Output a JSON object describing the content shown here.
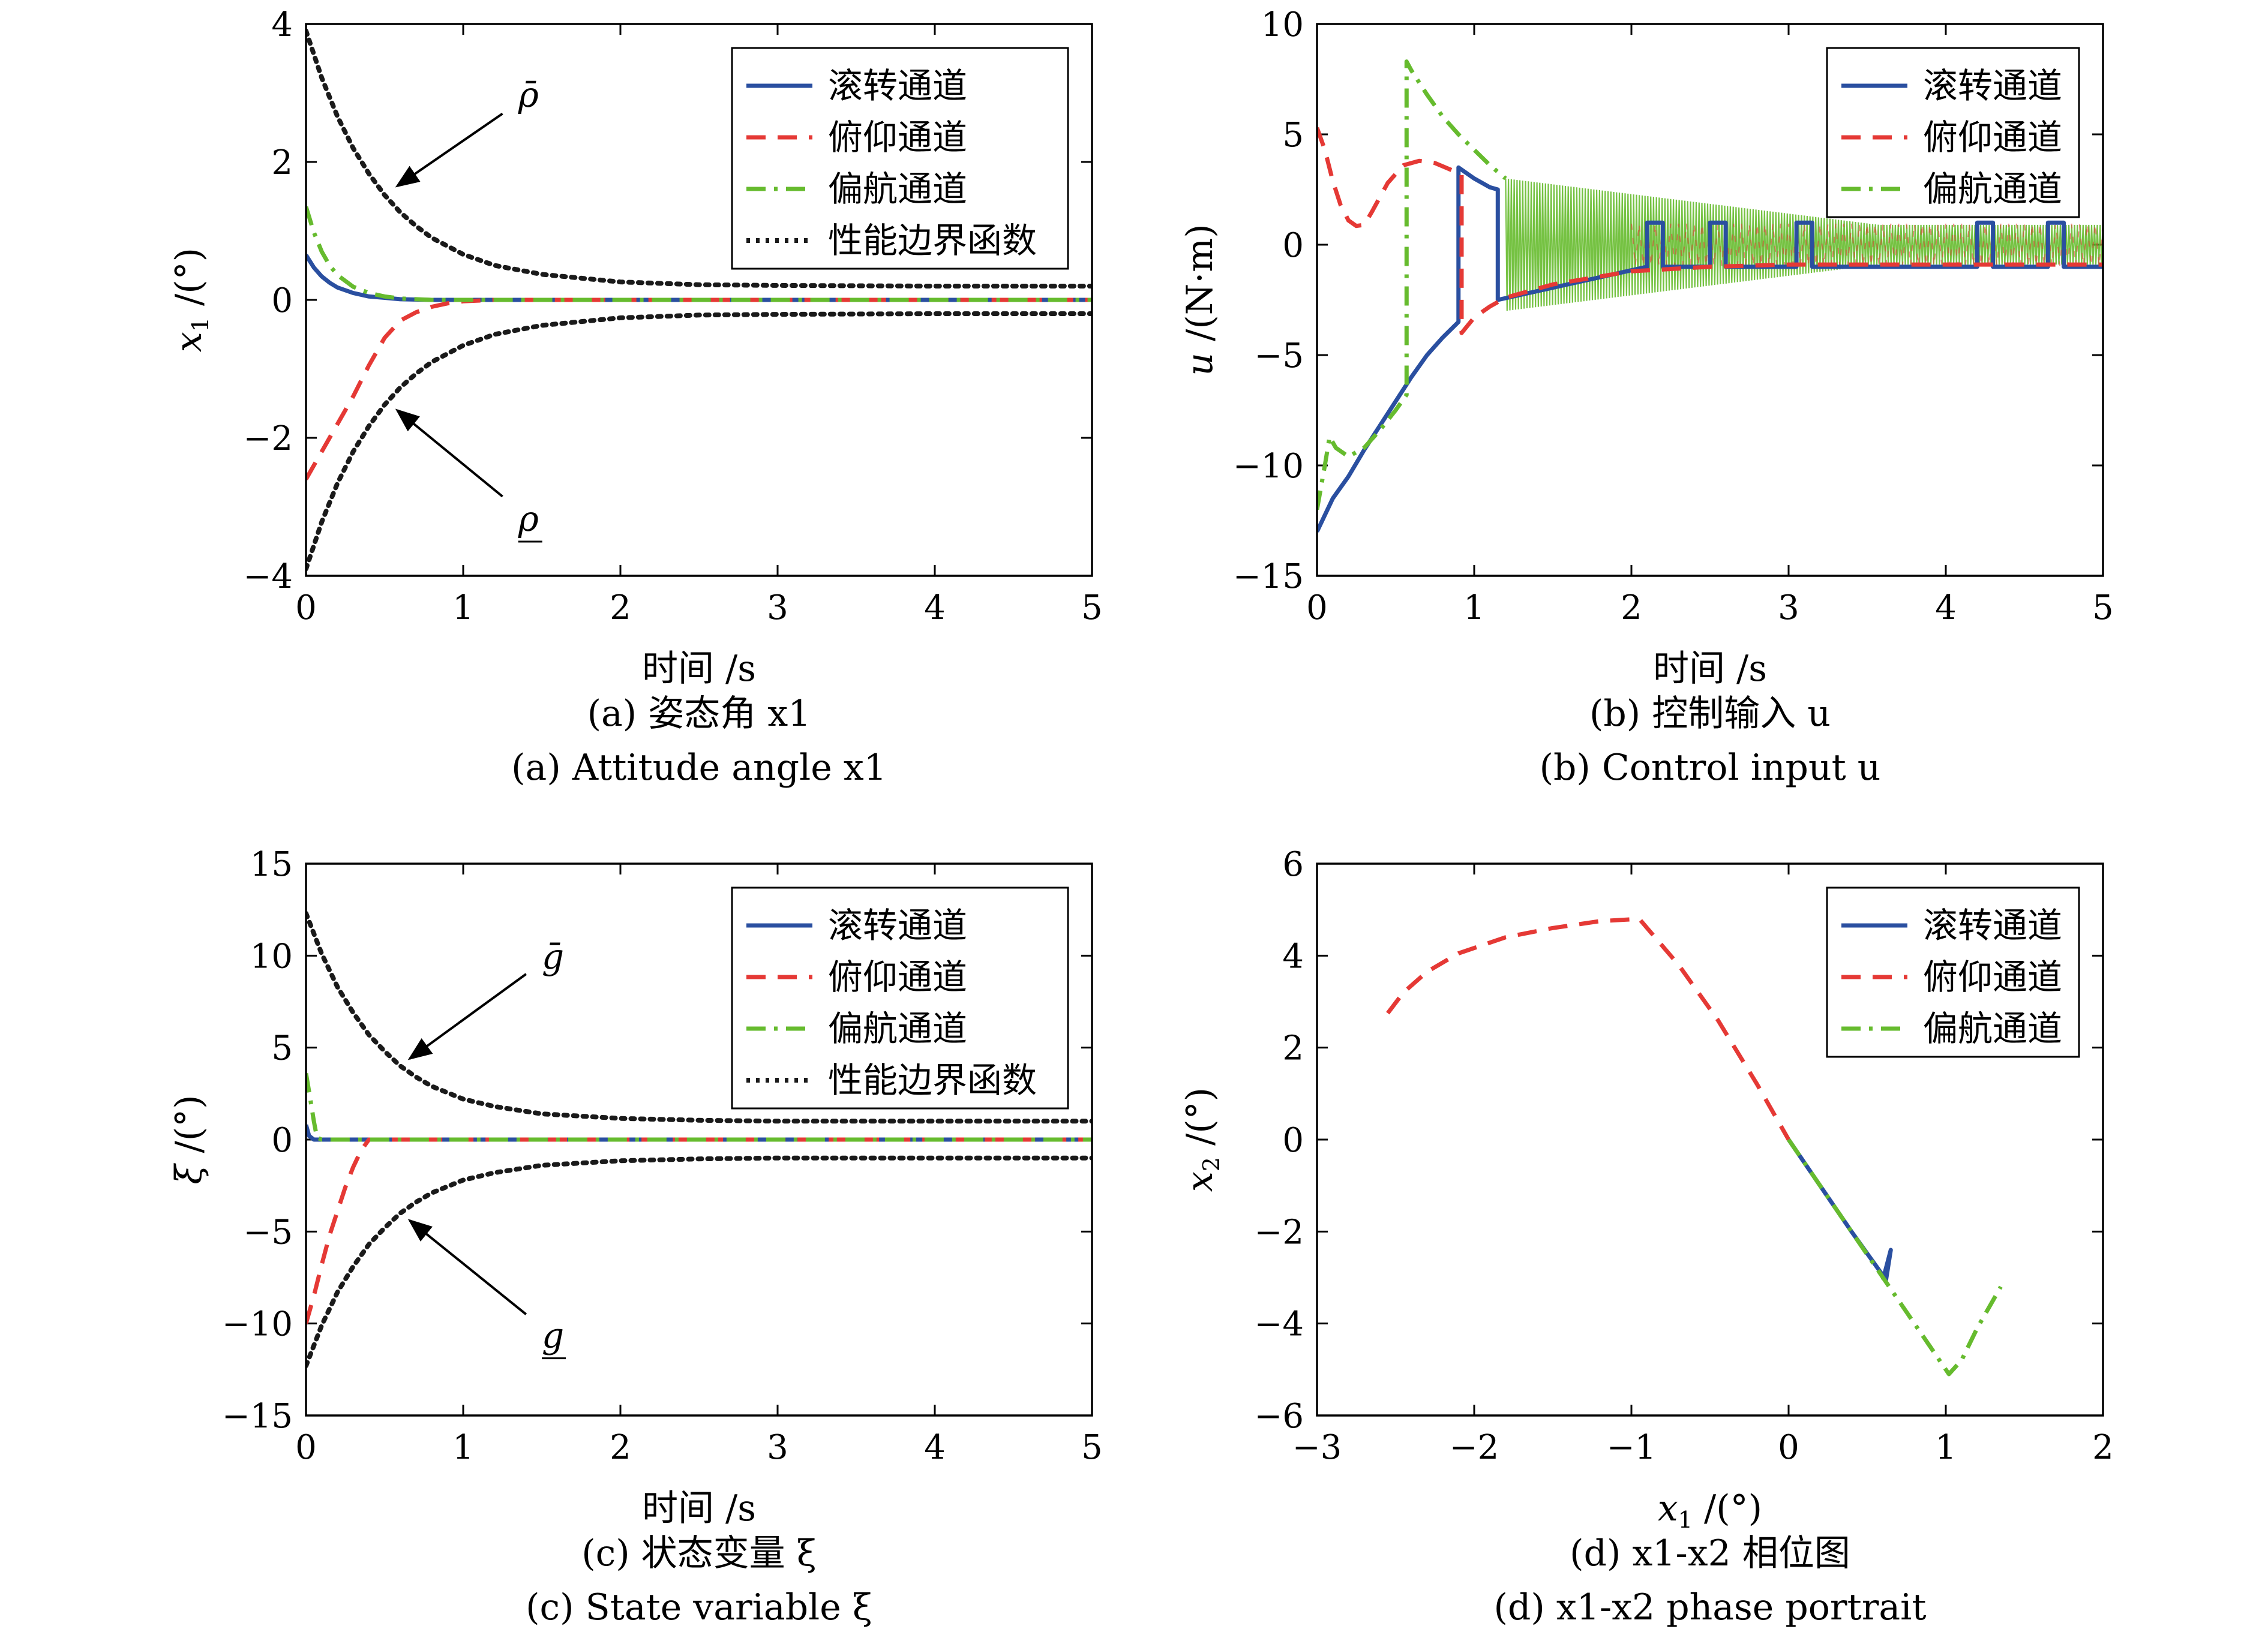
{
  "colors": {
    "roll": "#2a4fa0",
    "pitch": "#e53935",
    "yaw": "#66bb2e",
    "bound": "#1a1a1a"
  },
  "chart_data": [
    {
      "id": "a",
      "type": "line",
      "xlabel": "时间 /s",
      "ylabel": "x1 /(°)",
      "ylabel_var": "x",
      "ylabel_sub": "1",
      "ylabel_unit": " /(°)",
      "xlim": [
        0,
        5
      ],
      "ylim": [
        -4,
        4
      ],
      "xticks": [
        "0",
        "1",
        "2",
        "3",
        "4",
        "5"
      ],
      "yticks": [
        "−4",
        "−2",
        "0",
        "2",
        "4"
      ],
      "caption_cn": "(a) 姿态角 x1",
      "caption_en": "(a) Attitude angle x1",
      "legend_position": "top-right",
      "legend": [
        "滚转通道",
        "俯仰通道",
        "偏航通道",
        "性能边界函数"
      ],
      "annotations": [
        "ρ̄",
        "ρ"
      ],
      "series": [
        {
          "name": "滚转通道",
          "style": "roll",
          "x": [
            0,
            0.05,
            0.1,
            0.15,
            0.2,
            0.3,
            0.4,
            0.5,
            0.6,
            0.8,
            1,
            1.5,
            2,
            3,
            4,
            5
          ],
          "y": [
            0.65,
            0.47,
            0.34,
            0.25,
            0.18,
            0.1,
            0.05,
            0.03,
            0.01,
            0,
            0,
            0,
            0,
            0,
            0,
            0
          ]
        },
        {
          "name": "俯仰通道",
          "style": "pitch",
          "x": [
            0,
            0.1,
            0.2,
            0.3,
            0.4,
            0.5,
            0.6,
            0.7,
            0.8,
            0.9,
            1.0,
            1.2,
            1.5,
            2,
            3,
            4,
            5
          ],
          "y": [
            -2.6,
            -2.2,
            -1.8,
            -1.4,
            -0.95,
            -0.55,
            -0.3,
            -0.18,
            -0.1,
            -0.05,
            -0.02,
            0,
            0,
            0,
            0,
            0,
            0
          ]
        },
        {
          "name": "偏航通道",
          "style": "yaw",
          "x": [
            0,
            0.05,
            0.1,
            0.15,
            0.2,
            0.3,
            0.4,
            0.5,
            0.6,
            0.8,
            1,
            1.5,
            2,
            3,
            4,
            5
          ],
          "y": [
            1.35,
            0.98,
            0.7,
            0.5,
            0.36,
            0.19,
            0.1,
            0.05,
            0.02,
            0,
            0,
            0,
            0,
            0,
            0,
            0
          ]
        },
        {
          "name": "性能边界函数",
          "style": "bound",
          "x": [
            0,
            0.1,
            0.2,
            0.3,
            0.4,
            0.5,
            0.6,
            0.7,
            0.8,
            1,
            1.2,
            1.5,
            2,
            2.5,
            3,
            4,
            5
          ],
          "y": [
            3.9,
            3.22,
            2.66,
            2.2,
            1.83,
            1.52,
            1.27,
            1.07,
            0.9,
            0.66,
            0.5,
            0.37,
            0.26,
            0.22,
            0.21,
            0.2,
            0.2
          ]
        },
        {
          "name": "",
          "style": "bound",
          "x": [
            0,
            0.1,
            0.2,
            0.3,
            0.4,
            0.5,
            0.6,
            0.7,
            0.8,
            1,
            1.2,
            1.5,
            2,
            2.5,
            3,
            4,
            5
          ],
          "y": [
            -3.9,
            -3.22,
            -2.66,
            -2.2,
            -1.83,
            -1.52,
            -1.27,
            -1.07,
            -0.9,
            -0.66,
            -0.5,
            -0.37,
            -0.26,
            -0.22,
            -0.21,
            -0.2,
            -0.2
          ]
        }
      ]
    },
    {
      "id": "b",
      "type": "line",
      "xlabel": "时间 /s",
      "ylabel": "u /(N·m)",
      "ylabel_var": "u",
      "ylabel_sub": "",
      "ylabel_unit": " /(N·m)",
      "xlim": [
        0,
        5
      ],
      "ylim": [
        -15,
        10
      ],
      "xticks": [
        "0",
        "1",
        "2",
        "3",
        "4",
        "5"
      ],
      "yticks": [
        "−15",
        "−10",
        "−5",
        "0",
        "5",
        "10"
      ],
      "caption_cn": "(b) 控制输入 u",
      "caption_en": "(b) Control input u",
      "legend_position": "top-right",
      "legend": [
        "滚转通道",
        "俯仰通道",
        "偏航通道"
      ],
      "annotations": [],
      "series": [
        {
          "name": "滚转通道",
          "style": "roll",
          "x": [
            0,
            0.1,
            0.2,
            0.3,
            0.4,
            0.5,
            0.6,
            0.7,
            0.8,
            0.9,
            0.9,
            1.0,
            1.1,
            1.15,
            1.15,
            2.1,
            2.1,
            2.2,
            2.2,
            2.5,
            2.5,
            2.6,
            2.6,
            3.05,
            3.05,
            3.15,
            3.15,
            4.2,
            4.2,
            4.3,
            4.3,
            4.65,
            4.65,
            4.75,
            4.75,
            5
          ],
          "y": [
            -13,
            -11.5,
            -10.5,
            -9.3,
            -8.2,
            -7.1,
            -6,
            -5,
            -4.2,
            -3.5,
            3.5,
            3.0,
            2.6,
            2.5,
            -2.5,
            -1,
            1,
            1,
            -1,
            -1,
            1,
            1,
            -1,
            -1,
            1,
            1,
            -1,
            -1,
            1,
            1,
            -1,
            -1,
            1,
            1,
            -1,
            -1
          ]
        },
        {
          "name": "俯仰通道",
          "style": "pitch",
          "x": [
            0,
            0.05,
            0.1,
            0.15,
            0.2,
            0.25,
            0.3,
            0.35,
            0.45,
            0.55,
            0.65,
            0.75,
            0.85,
            0.92,
            0.92,
            1.0,
            1.1,
            1.2,
            1.5,
            2,
            2.5,
            3,
            3.5,
            4,
            4.5,
            5
          ],
          "y": [
            5.3,
            4.3,
            2.9,
            1.8,
            1.1,
            0.85,
            0.9,
            1.5,
            2.8,
            3.6,
            3.8,
            3.7,
            3.4,
            3.2,
            -4.0,
            -3.3,
            -2.8,
            -2.4,
            -1.8,
            -1.2,
            -1.0,
            -0.9,
            -0.9,
            -0.9,
            -0.9,
            -0.9
          ]
        },
        {
          "name": "偏航通道",
          "style": "yaw",
          "x": [
            0,
            0.05,
            0.08,
            0.12,
            0.2,
            0.3,
            0.4,
            0.5,
            0.57,
            0.57,
            0.6,
            0.7,
            0.8,
            0.9,
            1.0,
            1.1,
            1.2
          ],
          "y": [
            -12,
            -10,
            -8.7,
            -9.2,
            -9.6,
            -9.2,
            -8.4,
            -7.5,
            -6.8,
            8.3,
            7.9,
            6.8,
            5.8,
            5.0,
            4.3,
            3.6,
            3.0
          ]
        }
      ],
      "chatter": {
        "style": "yaw",
        "x_start": 1.2,
        "x_end": 5,
        "env_start": 3.0,
        "env_end": 0.9
      }
    },
    {
      "id": "c",
      "type": "line",
      "xlabel": "时间 /s",
      "ylabel": "ξ /(°)",
      "ylabel_var": "ξ",
      "ylabel_sub": "",
      "ylabel_unit": " /(°)",
      "xlim": [
        0,
        5
      ],
      "ylim": [
        -15,
        15
      ],
      "xticks": [
        "0",
        "1",
        "2",
        "3",
        "4",
        "5"
      ],
      "yticks": [
        "−15",
        "−10",
        "−5",
        "0",
        "5",
        "10",
        "15"
      ],
      "caption_cn": "(c) 状态变量 ξ",
      "caption_en": "(c) State variable ξ",
      "legend_position": "top-right",
      "legend": [
        "滚转通道",
        "俯仰通道",
        "偏航通道",
        "性能边界函数"
      ],
      "annotations": [
        "ḡ",
        "g"
      ],
      "series": [
        {
          "name": "滚转通道",
          "style": "roll",
          "x": [
            0,
            0.02,
            0.05,
            1,
            2,
            3,
            4,
            5
          ],
          "y": [
            0.8,
            0.2,
            0,
            0,
            0,
            0,
            0,
            0
          ]
        },
        {
          "name": "俯仰通道",
          "style": "pitch",
          "x": [
            0,
            0.05,
            0.1,
            0.15,
            0.2,
            0.25,
            0.3,
            0.35,
            0.4,
            0.5,
            1,
            2,
            3,
            4,
            5
          ],
          "y": [
            -10,
            -8.5,
            -6.8,
            -5.2,
            -3.9,
            -2.6,
            -1.5,
            -0.6,
            0,
            0,
            0,
            0,
            0,
            0,
            0
          ]
        },
        {
          "name": "偏航通道",
          "style": "yaw",
          "x": [
            0,
            0.02,
            0.05,
            0.07,
            0.1,
            1,
            2,
            3,
            4,
            5
          ],
          "y": [
            3.6,
            2.6,
            1.0,
            0.1,
            0,
            0,
            0,
            0,
            0,
            0
          ]
        },
        {
          "name": "性能边界函数",
          "style": "bound",
          "x": [
            0,
            0.1,
            0.2,
            0.3,
            0.4,
            0.5,
            0.6,
            0.7,
            0.8,
            1,
            1.2,
            1.5,
            2,
            2.5,
            3,
            4,
            5
          ],
          "y": [
            12.3,
            10.1,
            8.3,
            6.9,
            5.7,
            4.8,
            4.0,
            3.4,
            2.9,
            2.2,
            1.8,
            1.4,
            1.15,
            1.05,
            1.0,
            1.0,
            1.0
          ]
        },
        {
          "name": "",
          "style": "bound",
          "x": [
            0,
            0.1,
            0.2,
            0.3,
            0.4,
            0.5,
            0.6,
            0.7,
            0.8,
            1,
            1.2,
            1.5,
            2,
            2.5,
            3,
            4,
            5
          ],
          "y": [
            -12.3,
            -10.1,
            -8.3,
            -6.9,
            -5.7,
            -4.8,
            -4.0,
            -3.4,
            -2.9,
            -2.2,
            -1.8,
            -1.4,
            -1.15,
            -1.05,
            -1.0,
            -1.0,
            -1.0
          ]
        }
      ]
    },
    {
      "id": "d",
      "type": "line",
      "xlabel": "x1 /(°)",
      "ylabel": "x2 /(°)",
      "xlabel_var": "x",
      "xlabel_sub": "1",
      "xlabel_unit": " /(°)",
      "ylabel_var": "x",
      "ylabel_sub": "2",
      "ylabel_unit": " /(°)",
      "xlim": [
        -3,
        2
      ],
      "ylim": [
        -6,
        6
      ],
      "xticks": [
        "−3",
        "−2",
        "−1",
        "0",
        "1",
        "2"
      ],
      "yticks": [
        "−6",
        "−4",
        "−2",
        "0",
        "2",
        "4",
        "6"
      ],
      "caption_cn": "(d) x1-x2 相位图",
      "caption_en": "(d) x1-x2 phase portrait",
      "legend_position": "top-right",
      "legend": [
        "滚转通道",
        "俯仰通道",
        "偏航通道"
      ],
      "annotations": [],
      "series": [
        {
          "name": "滚转通道",
          "style": "roll",
          "x": [
            0,
            0.2,
            0.4,
            0.62,
            0.65,
            0.6
          ],
          "y": [
            0,
            -1.0,
            -2.0,
            -3.05,
            -2.4,
            -3.05
          ]
        },
        {
          "name": "俯仰通道",
          "style": "pitch",
          "x": [
            -2.55,
            -2.45,
            -2.3,
            -2.1,
            -1.8,
            -1.5,
            -1.2,
            -0.95,
            -0.7,
            -0.45,
            -0.2,
            0
          ],
          "y": [
            2.75,
            3.2,
            3.65,
            4.05,
            4.4,
            4.6,
            4.75,
            4.8,
            3.8,
            2.6,
            1.2,
            0
          ]
        },
        {
          "name": "偏航通道",
          "style": "yaw",
          "x": [
            0,
            0.3,
            0.6,
            0.9,
            1.02,
            1.1,
            1.2,
            1.35
          ],
          "y": [
            0,
            -1.5,
            -3.0,
            -4.5,
            -5.1,
            -4.8,
            -4.1,
            -3.2
          ]
        }
      ]
    }
  ]
}
